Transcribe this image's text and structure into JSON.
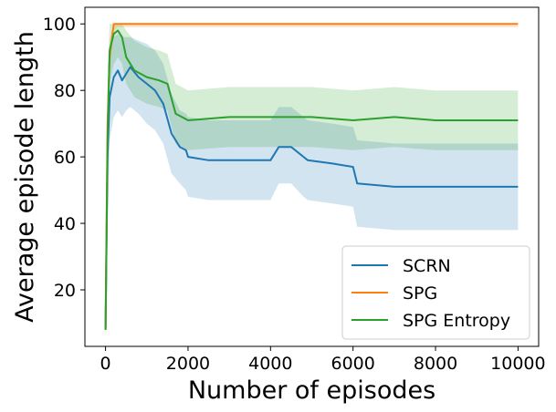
{
  "chart_data": {
    "type": "line",
    "title": "",
    "xlabel": "Number of episodes",
    "ylabel": "Average episode length",
    "xlim": [
      -500,
      10500
    ],
    "ylim": [
      3,
      105
    ],
    "xticks": [
      0,
      2000,
      4000,
      6000,
      8000,
      10000
    ],
    "xtick_labels": [
      "0",
      "2000",
      "4000",
      "6000",
      "8000",
      "10000"
    ],
    "yticks": [
      20,
      40,
      60,
      80,
      100
    ],
    "ytick_labels": [
      "20",
      "40",
      "60",
      "80",
      "100"
    ],
    "grid": false,
    "legend_position": "lower-right",
    "series": [
      {
        "name": "SCRN",
        "color": "#1f77b4",
        "band_color": "#1f77b4",
        "x": [
          0,
          50,
          100,
          200,
          300,
          400,
          500,
          600,
          800,
          1000,
          1200,
          1400,
          1600,
          1800,
          1950,
          2000,
          2500,
          3000,
          3500,
          4000,
          4200,
          4500,
          4800,
          4900,
          5500,
          6000,
          6100,
          7000,
          8000,
          9000,
          10000
        ],
        "y": [
          8,
          60,
          78,
          84,
          86,
          83,
          85,
          87,
          84,
          82,
          80,
          76,
          67,
          63,
          62,
          60,
          59,
          59,
          59,
          59,
          63,
          63,
          60,
          59,
          58,
          57,
          52,
          51,
          51,
          51,
          51
        ],
        "band_lower": [
          8,
          40,
          65,
          72,
          74,
          72,
          74,
          75,
          73,
          70,
          68,
          64,
          55,
          52,
          50,
          48,
          47,
          47,
          47,
          47,
          52,
          52,
          48,
          47,
          46,
          45,
          39,
          38,
          38,
          38,
          38
        ],
        "band_upper": [
          8,
          80,
          92,
          96,
          97,
          96,
          96,
          96,
          95,
          94,
          92,
          88,
          79,
          74,
          73,
          72,
          71,
          71,
          71,
          71,
          75,
          75,
          72,
          71,
          70,
          69,
          65,
          64,
          64,
          64,
          64
        ]
      },
      {
        "name": "SPG",
        "color": "#ff7f0e",
        "band_color": "#ff7f0e",
        "x": [
          0,
          50,
          100,
          150,
          200,
          300,
          500,
          1000,
          2000,
          4000,
          6000,
          8000,
          10000
        ],
        "y": [
          8,
          70,
          90,
          95,
          100,
          100,
          100,
          100,
          100,
          100,
          100,
          100,
          100
        ],
        "band_lower": [
          8,
          60,
          85,
          92,
          98,
          99,
          99,
          99,
          99,
          99,
          99,
          99,
          99
        ],
        "band_upper": [
          8,
          80,
          95,
          98,
          100,
          100,
          100,
          100,
          100,
          100,
          100,
          100,
          100
        ]
      },
      {
        "name": "SPG Entropy",
        "color": "#2ca02c",
        "band_color": "#2ca02c",
        "x": [
          0,
          50,
          100,
          200,
          300,
          400,
          500,
          700,
          1000,
          1300,
          1500,
          1700,
          2000,
          3000,
          4000,
          5000,
          6000,
          7000,
          8000,
          9000,
          10000
        ],
        "y": [
          8,
          65,
          92,
          97,
          98,
          96,
          90,
          86,
          84,
          83,
          82,
          73,
          71,
          72,
          72,
          72,
          71,
          72,
          71,
          71,
          71
        ],
        "band_lower": [
          8,
          45,
          82,
          88,
          90,
          88,
          82,
          78,
          76,
          75,
          74,
          64,
          62,
          63,
          63,
          63,
          62,
          63,
          62,
          62,
          62
        ],
        "band_upper": [
          8,
          85,
          100,
          100,
          100,
          100,
          98,
          95,
          93,
          92,
          91,
          82,
          80,
          81,
          81,
          81,
          80,
          81,
          80,
          80,
          80
        ]
      }
    ]
  }
}
